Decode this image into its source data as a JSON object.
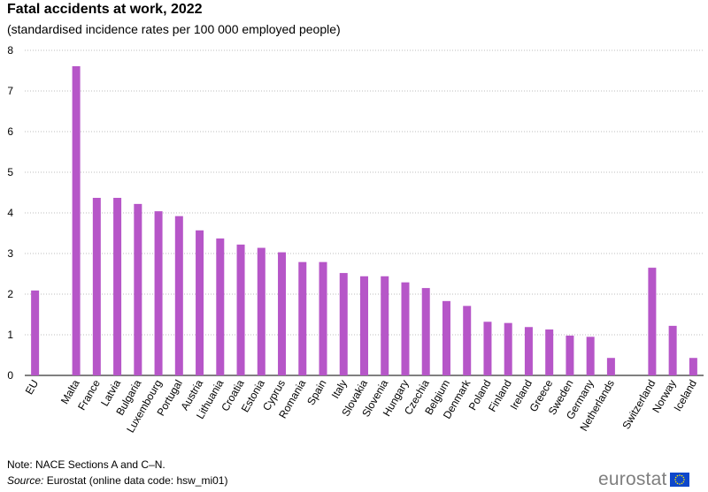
{
  "chart_data": {
    "type": "bar",
    "title": "Fatal accidents at work, 2022",
    "subtitle": "(standardised incidence rates per 100 000 employed  people)",
    "categories": [
      "EU",
      "",
      "Malta",
      "France",
      "Latvia",
      "Bulgaria",
      "Luxembourg",
      "Portugal",
      "Austria",
      "Lithuania",
      "Croatia",
      "Estonia",
      "Cyprus",
      "Romania",
      "Spain",
      "Italy",
      "Slovakia",
      "Slovenia",
      "Hungary",
      "Czechia",
      "Belgium",
      "Denmark",
      "Poland",
      "Finland",
      "Ireland",
      "Greece",
      "Sweden",
      "Germany",
      "Netherlands",
      "",
      "Switzerland",
      "Norway",
      "Iceland"
    ],
    "series": [
      {
        "values": [
          2.09,
          null,
          7.61,
          4.37,
          4.37,
          4.22,
          4.04,
          3.92,
          3.57,
          3.37,
          3.22,
          3.14,
          3.03,
          2.79,
          2.79,
          2.52,
          2.44,
          2.44,
          2.29,
          2.15,
          1.83,
          1.71,
          1.32,
          1.29,
          1.19,
          1.13,
          0.98,
          0.95,
          0.43,
          null,
          2.65,
          1.22,
          0.43
        ],
        "color": "#b656c8"
      }
    ],
    "y_ticks": [
      "0",
      "1",
      "2",
      "3",
      "4",
      "5",
      "6",
      "7",
      "8"
    ],
    "ylim": [
      0,
      8
    ],
    "grid": "horizontal dotted",
    "legend": "none"
  },
  "footer": {
    "note": "Note: NACE Sections A and C–N.",
    "source_label": "Source:",
    "source_text": " Eurostat (online data code: hsw_mi01)"
  },
  "logo": {
    "text": "eurostat",
    "flag_color": "#0e47cb",
    "star_color": "#ffed00"
  }
}
